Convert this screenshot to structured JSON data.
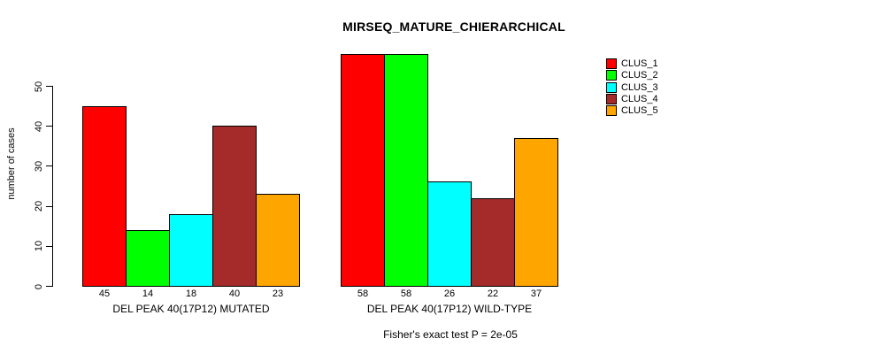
{
  "title": "MIRSEQ_MATURE_CHIERARCHICAL",
  "footer": "Fisher's exact test P = 2e-05",
  "chart_data": {
    "type": "bar",
    "title": "MIRSEQ_MATURE_CHIERARCHICAL",
    "xlabel": "",
    "ylabel": "number of cases",
    "yticks": [
      0,
      10,
      20,
      30,
      40,
      50
    ],
    "ylim": [
      0,
      58
    ],
    "grid": false,
    "legend_position": "right",
    "series": [
      {
        "name": "CLUS_1",
        "color": "#FF0000"
      },
      {
        "name": "CLUS_2",
        "color": "#00FF00"
      },
      {
        "name": "CLUS_3",
        "color": "#00FFFF"
      },
      {
        "name": "CLUS_4",
        "color": "#A52A2A"
      },
      {
        "name": "CLUS_5",
        "color": "#FFA500"
      }
    ],
    "groups": [
      {
        "label": "DEL PEAK 40(17P12) MUTATED",
        "values": [
          45,
          14,
          18,
          40,
          23
        ]
      },
      {
        "label": "DEL PEAK 40(17P12) WILD-TYPE",
        "values": [
          58,
          58,
          26,
          22,
          37
        ]
      }
    ],
    "bar_value_labels_shown": true,
    "annotation": "Fisher's exact test P = 2e-05"
  }
}
